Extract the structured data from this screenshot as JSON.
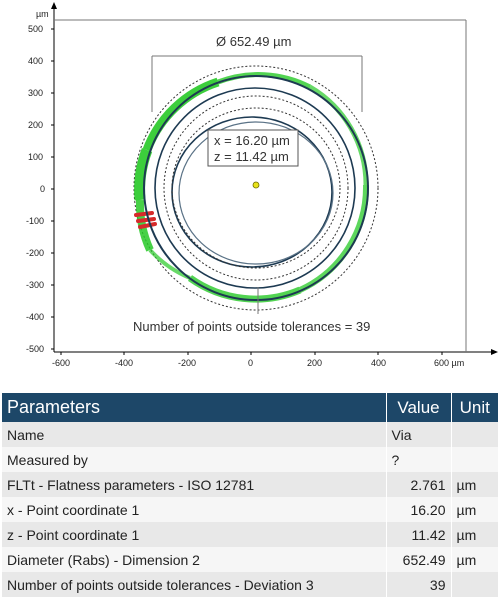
{
  "plot": {
    "x_unit": "µm",
    "y_unit": "µm",
    "x_ticks": [
      "-600",
      "-400",
      "-200",
      "0",
      "200",
      "400",
      "600 µm"
    ],
    "y_ticks": [
      "500",
      "400",
      "300",
      "200",
      "100",
      "0",
      "-100",
      "-200",
      "-300",
      "-400",
      "-500"
    ],
    "diameter_label": "Ø 652.49 µm",
    "coord_x_label": "x = 16.20 µm",
    "coord_z_label": "z = 11.42 µm",
    "outside_label": "Number of points outside tolerances = 39",
    "colors": {
      "in_tolerance": "#27c927",
      "out_of_tolerance": "#d62a2a",
      "profile": "#1d3a52",
      "center": "#e8e21a"
    }
  },
  "table": {
    "headers": {
      "parameter": "Parameters",
      "value": "Value",
      "unit": "Unit"
    },
    "rows": [
      {
        "name": "Name",
        "value": "Via",
        "unit": ""
      },
      {
        "name": "Measured by",
        "value": "?",
        "unit": ""
      },
      {
        "name": "FLTt - Flatness parameters - ISO 12781",
        "value": "2.761",
        "unit": "µm"
      },
      {
        "name": "x - Point coordinate 1",
        "value": "16.20",
        "unit": "µm"
      },
      {
        "name": "z - Point coordinate 1",
        "value": "11.42",
        "unit": "µm"
      },
      {
        "name": "Diameter (Rabs) - Dimension 2",
        "value": "652.49",
        "unit": "µm"
      },
      {
        "name": "Number of points outside tolerances - Deviation 3",
        "value": "39",
        "unit": ""
      }
    ]
  }
}
